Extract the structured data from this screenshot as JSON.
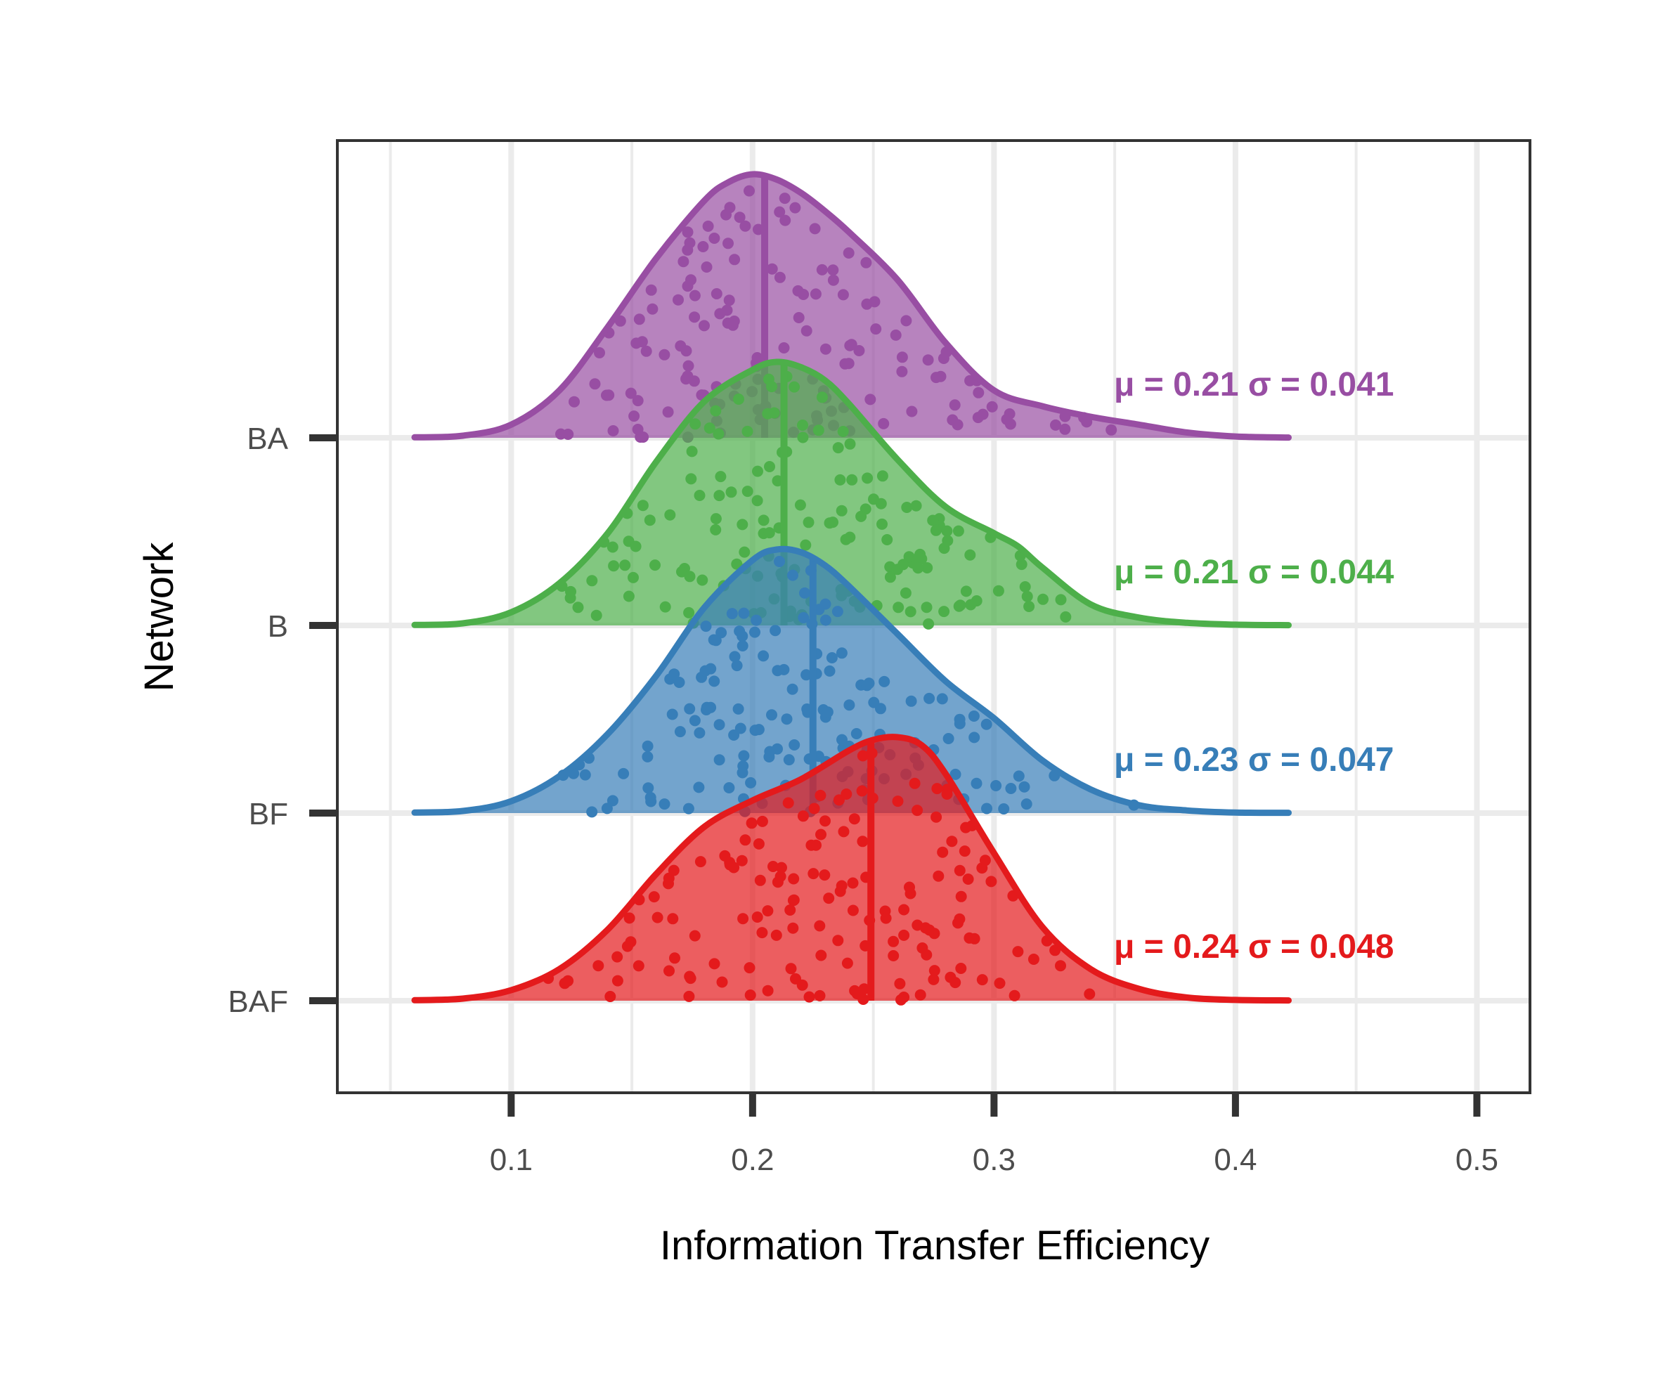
{
  "chart_data": {
    "type": "ridgeline",
    "xlabel": "Information Transfer Efficiency",
    "ylabel": "Network",
    "xlim": [
      0.028,
      0.522
    ],
    "x_ticks": [
      0.1,
      0.2,
      0.3,
      0.4,
      0.5
    ],
    "x_tick_labels": [
      "0.1",
      "0.2",
      "0.3",
      "0.4",
      "0.5"
    ],
    "categories": [
      "BA",
      "B",
      "BF",
      "BAF"
    ],
    "grid": true,
    "series": [
      {
        "name": "BA",
        "color": "#984ea3",
        "median": 0.205,
        "stat_label": "μ = 0.21 σ = 0.041",
        "density_x": [
          0.06,
          0.08,
          0.1,
          0.12,
          0.14,
          0.16,
          0.18,
          0.19,
          0.2,
          0.21,
          0.22,
          0.23,
          0.24,
          0.26,
          0.28,
          0.3,
          0.32,
          0.34,
          0.36,
          0.38,
          0.4,
          0.422
        ],
        "density_y": [
          0.002,
          0.008,
          0.05,
          0.18,
          0.42,
          0.68,
          0.9,
          0.97,
          1.0,
          0.98,
          0.93,
          0.86,
          0.78,
          0.6,
          0.36,
          0.18,
          0.12,
          0.08,
          0.05,
          0.02,
          0.005,
          0.001
        ]
      },
      {
        "name": "B",
        "color": "#4daf4a",
        "median": 0.213,
        "stat_label": "μ = 0.21 σ = 0.044",
        "density_x": [
          0.06,
          0.08,
          0.1,
          0.12,
          0.14,
          0.16,
          0.18,
          0.2,
          0.21,
          0.22,
          0.23,
          0.24,
          0.26,
          0.28,
          0.3,
          0.31,
          0.32,
          0.34,
          0.36,
          0.38,
          0.4,
          0.422
        ],
        "density_y": [
          0.002,
          0.008,
          0.05,
          0.16,
          0.35,
          0.62,
          0.85,
          0.97,
          1.0,
          0.98,
          0.93,
          0.84,
          0.63,
          0.45,
          0.35,
          0.3,
          0.22,
          0.08,
          0.03,
          0.01,
          0.003,
          0.001
        ]
      },
      {
        "name": "BF",
        "color": "#377eb8",
        "median": 0.225,
        "stat_label": "μ = 0.23 σ = 0.047",
        "density_x": [
          0.06,
          0.08,
          0.1,
          0.12,
          0.14,
          0.16,
          0.18,
          0.2,
          0.21,
          0.22,
          0.23,
          0.24,
          0.26,
          0.28,
          0.3,
          0.32,
          0.34,
          0.36,
          0.38,
          0.4,
          0.422
        ],
        "density_y": [
          0.002,
          0.008,
          0.045,
          0.14,
          0.3,
          0.52,
          0.78,
          0.96,
          1.0,
          0.99,
          0.94,
          0.86,
          0.68,
          0.5,
          0.36,
          0.2,
          0.09,
          0.03,
          0.01,
          0.002,
          0.001
        ]
      },
      {
        "name": "BAF",
        "color": "#e41a1c",
        "median": 0.249,
        "stat_label": "μ = 0.24 σ = 0.048",
        "density_x": [
          0.06,
          0.08,
          0.1,
          0.12,
          0.14,
          0.16,
          0.18,
          0.2,
          0.22,
          0.24,
          0.25,
          0.26,
          0.27,
          0.28,
          0.3,
          0.32,
          0.34,
          0.36,
          0.38,
          0.4,
          0.422
        ],
        "density_y": [
          0.002,
          0.008,
          0.04,
          0.12,
          0.27,
          0.48,
          0.66,
          0.76,
          0.84,
          0.95,
          0.99,
          1.0,
          0.97,
          0.86,
          0.56,
          0.28,
          0.12,
          0.045,
          0.012,
          0.003,
          0.001
        ]
      }
    ]
  }
}
